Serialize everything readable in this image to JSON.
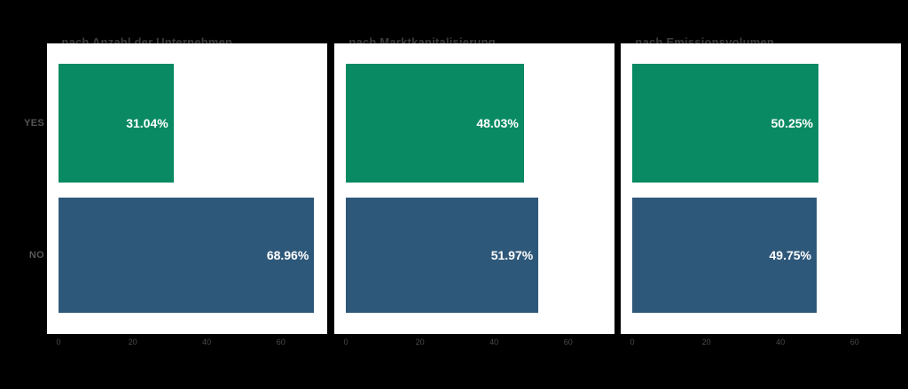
{
  "chart_data": {
    "type": "bar",
    "orientation": "horizontal",
    "title": "",
    "categories": [
      "YES",
      "NO"
    ],
    "x_ticks": [
      "0",
      "20",
      "40",
      "60"
    ],
    "xlim": [
      -3.45,
      72.4
    ],
    "grid": false,
    "legend": "none",
    "colors": {
      "yes_bar": "#098a62",
      "no_bar": "#2e587a",
      "bar_label_text": "#ffffff",
      "panel_background": "#ffffff",
      "figure_background": "#000000"
    },
    "panels": [
      {
        "title": "...nach Anzahl der Unternehmen",
        "series": [
          {
            "category": "YES",
            "value": 31.04,
            "label": "31.04%"
          },
          {
            "category": "NO",
            "value": 68.96,
            "label": "68.96%"
          }
        ]
      },
      {
        "title": "...nach Marktkapitalisierung",
        "series": [
          {
            "category": "YES",
            "value": 48.03,
            "label": "48.03%"
          },
          {
            "category": "NO",
            "value": 51.97,
            "label": "51.97%"
          }
        ]
      },
      {
        "title": "...nach Emissionsvolumen",
        "series": [
          {
            "category": "YES",
            "value": 50.25,
            "label": "50.25%"
          },
          {
            "category": "NO",
            "value": 49.75,
            "label": "49.75%"
          }
        ]
      }
    ],
    "y_axis_labels": {
      "yes": "YES",
      "no": "NO"
    }
  }
}
